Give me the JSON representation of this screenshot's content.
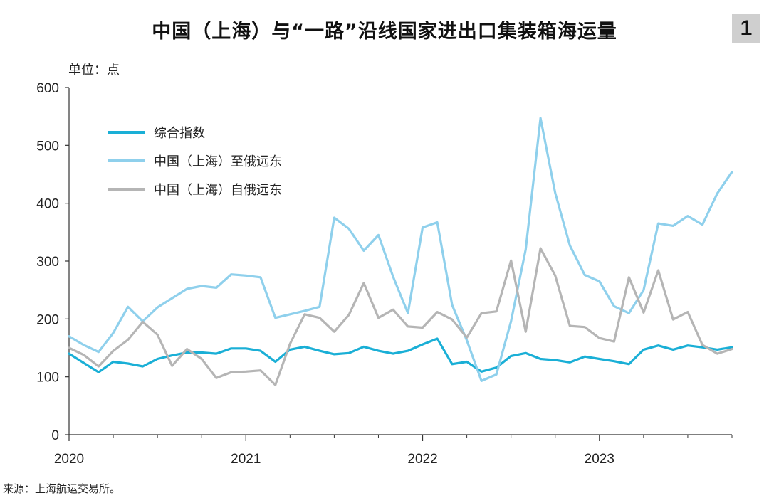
{
  "header": {
    "title": "中国（上海）与“一路”沿线国家进出口集装箱海运量",
    "figure_number": "1",
    "unit": "单位：点"
  },
  "footer": {
    "source": "来源：上海航运交易所。"
  },
  "chart_data": {
    "type": "line",
    "title": "中国（上海）与“一路”沿线国家进出口集装箱海运量",
    "xlabel": "",
    "ylabel": "",
    "ylim": [
      0,
      600
    ],
    "yticks": [
      0,
      100,
      200,
      300,
      400,
      500,
      600
    ],
    "xlim": [
      2020.0,
      2023.75
    ],
    "xticks": [
      "2020",
      "2021",
      "2022",
      "2023"
    ],
    "grid": false,
    "legend_position": "top-left",
    "series": [
      {
        "name": "综合指数",
        "color": "#1aafd6",
        "x": [
          2020.0,
          2020.083,
          2020.167,
          2020.25,
          2020.333,
          2020.417,
          2020.5,
          2020.583,
          2020.667,
          2020.75,
          2020.833,
          2020.917,
          2021.0,
          2021.083,
          2021.167,
          2021.25,
          2021.333,
          2021.417,
          2021.5,
          2021.583,
          2021.667,
          2021.75,
          2021.833,
          2021.917,
          2022.0,
          2022.083,
          2022.167,
          2022.25,
          2022.333,
          2022.417,
          2022.5,
          2022.583,
          2022.667,
          2022.75,
          2022.833,
          2022.917,
          2023.0,
          2023.083,
          2023.167,
          2023.25,
          2023.333,
          2023.417,
          2023.5,
          2023.583,
          2023.667,
          2023.75
        ],
        "values": [
          140,
          124,
          108,
          126,
          123,
          118,
          131,
          137,
          142,
          142,
          140,
          149,
          149,
          145,
          126,
          147,
          152,
          145,
          139,
          141,
          152,
          145,
          140,
          145,
          156,
          166,
          122,
          126,
          109,
          116,
          136,
          141,
          131,
          129,
          125,
          135,
          131,
          127,
          122,
          147,
          154,
          147,
          154,
          151,
          147,
          151
        ]
      },
      {
        "name": "中国（上海）至俄远东",
        "color": "#8fd0ec",
        "x": [
          2020.0,
          2020.083,
          2020.167,
          2020.25,
          2020.333,
          2020.417,
          2020.5,
          2020.583,
          2020.667,
          2020.75,
          2020.833,
          2020.917,
          2021.0,
          2021.083,
          2021.167,
          2021.25,
          2021.333,
          2021.417,
          2021.5,
          2021.583,
          2021.667,
          2021.75,
          2021.833,
          2021.917,
          2022.0,
          2022.083,
          2022.167,
          2022.25,
          2022.333,
          2022.417,
          2022.5,
          2022.583,
          2022.667,
          2022.75,
          2022.833,
          2022.917,
          2023.0,
          2023.083,
          2023.167,
          2023.25,
          2023.333,
          2023.417,
          2023.5,
          2023.583,
          2023.667,
          2023.75
        ],
        "values": [
          170,
          155,
          143,
          176,
          221,
          196,
          220,
          236,
          252,
          257,
          254,
          277,
          275,
          272,
          202,
          208,
          214,
          221,
          375,
          356,
          318,
          345,
          273,
          210,
          358,
          367,
          224,
          163,
          93,
          104,
          196,
          320,
          547,
          418,
          327,
          276,
          265,
          222,
          210,
          250,
          365,
          361,
          378,
          363,
          417,
          454
        ]
      },
      {
        "name": "中国（上海）自俄远东",
        "color": "#b5b5b5",
        "x": [
          2020.0,
          2020.083,
          2020.167,
          2020.25,
          2020.333,
          2020.417,
          2020.5,
          2020.583,
          2020.667,
          2020.75,
          2020.833,
          2020.917,
          2021.0,
          2021.083,
          2021.167,
          2021.25,
          2021.333,
          2021.417,
          2021.5,
          2021.583,
          2021.667,
          2021.75,
          2021.833,
          2021.917,
          2022.0,
          2022.083,
          2022.167,
          2022.25,
          2022.333,
          2022.417,
          2022.5,
          2022.583,
          2022.667,
          2022.75,
          2022.833,
          2022.917,
          2023.0,
          2023.083,
          2023.167,
          2023.25,
          2023.333,
          2023.417,
          2023.5,
          2023.583,
          2023.667,
          2023.75
        ],
        "values": [
          150,
          138,
          118,
          145,
          164,
          195,
          173,
          119,
          148,
          131,
          98,
          108,
          109,
          111,
          86,
          157,
          208,
          202,
          178,
          207,
          262,
          202,
          216,
          187,
          185,
          212,
          199,
          168,
          210,
          213,
          301,
          178,
          322,
          275,
          188,
          186,
          167,
          161,
          272,
          211,
          284,
          199,
          212,
          155,
          140,
          148
        ]
      }
    ]
  }
}
